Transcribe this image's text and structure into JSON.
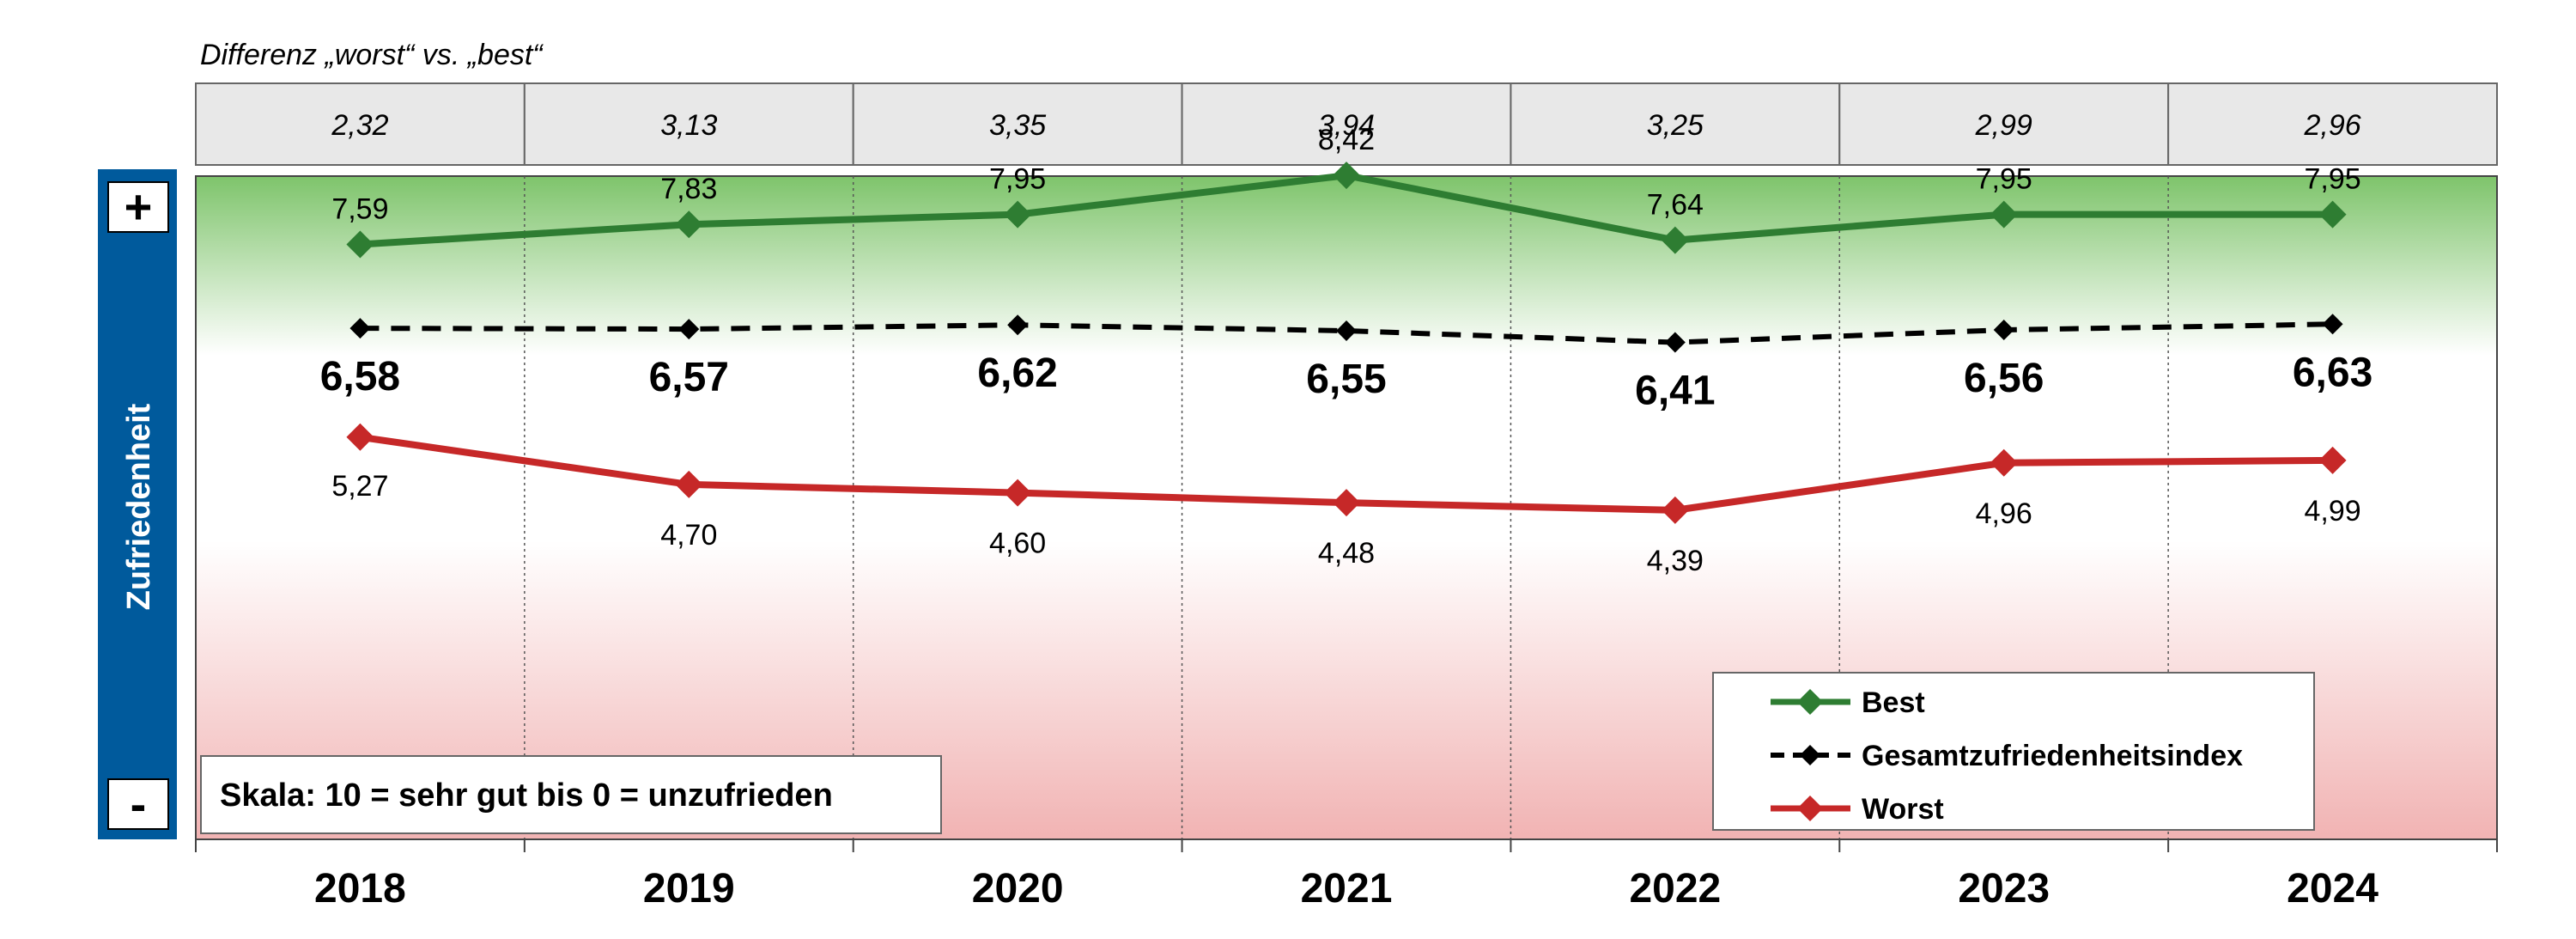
{
  "chart_data": {
    "type": "line",
    "categories": [
      "2018",
      "2019",
      "2020",
      "2021",
      "2022",
      "2023",
      "2024"
    ],
    "series": [
      {
        "name": "Best",
        "values": [
          7.59,
          7.83,
          7.95,
          8.42,
          7.64,
          7.95,
          7.95
        ],
        "labels": [
          "7,59",
          "7,83",
          "7,95",
          "8,42",
          "7,64",
          "7,95",
          "7,95"
        ],
        "color": "#2e7d32",
        "dashed": false
      },
      {
        "name": "Gesamtzufriedenheitsindex",
        "values": [
          6.58,
          6.57,
          6.62,
          6.55,
          6.41,
          6.56,
          6.63
        ],
        "labels": [
          "6,58",
          "6,57",
          "6,62",
          "6,55",
          "6,41",
          "6,56",
          "6,63"
        ],
        "color": "#000000",
        "dashed": true
      },
      {
        "name": "Worst",
        "values": [
          5.27,
          4.7,
          4.6,
          4.48,
          4.39,
          4.96,
          4.99
        ],
        "labels": [
          "5,27",
          "4,70",
          "4,60",
          "4,48",
          "4,39",
          "4,96",
          "4,99"
        ],
        "color": "#c62828",
        "dashed": false
      }
    ],
    "difference_title": "Differenz „worst“ vs. „best“",
    "difference_values": [
      "2,32",
      "3,13",
      "3,35",
      "3,94",
      "3,25",
      "2,99",
      "2,96"
    ],
    "ylabel": "Zufriedenheit",
    "plus_symbol": "+",
    "minus_symbol": "-",
    "scale_note": "Skala: 10 = sehr gut bis 0 = unzufrieden",
    "legend_position": "bottom-right",
    "grid": true,
    "colors": {
      "axis_bar": "#005a9c",
      "top_gradient": "#7ec46b",
      "bottom_gradient": "#f1b3b3",
      "diff_box": "#e8e8e8"
    }
  }
}
